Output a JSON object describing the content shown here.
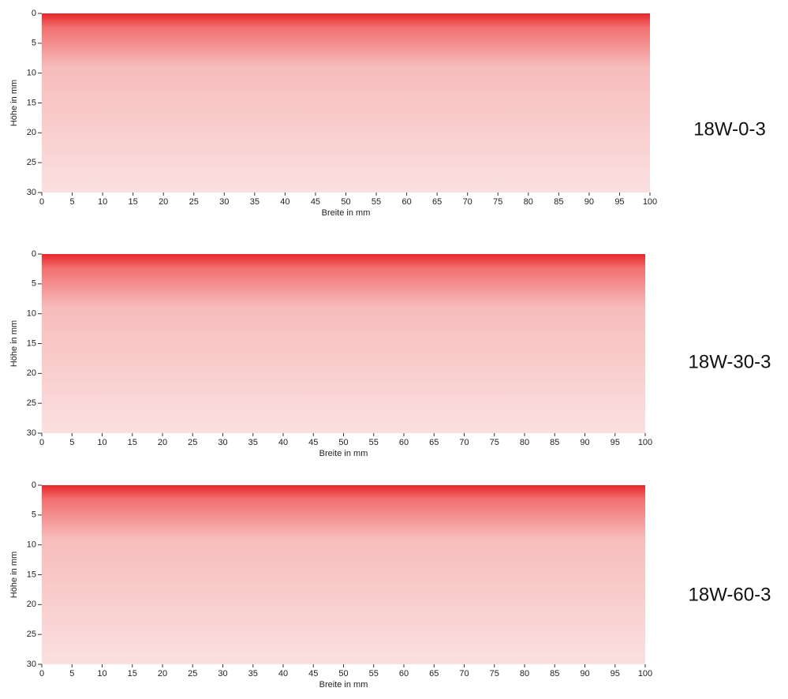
{
  "chart_data": [
    {
      "type": "heatmap",
      "label": "18W-0-3",
      "xlabel": "Breite in mm",
      "ylabel": "Höhe in mm",
      "xlim": [
        0,
        100
      ],
      "ylim": [
        30,
        0
      ],
      "xticks": [
        0,
        5,
        10,
        15,
        20,
        25,
        30,
        35,
        40,
        45,
        50,
        55,
        60,
        65,
        70,
        75,
        80,
        85,
        90,
        95,
        100
      ],
      "yticks": [
        0,
        5,
        10,
        15,
        20,
        25,
        30
      ]
    },
    {
      "type": "heatmap",
      "label": "18W-30-3",
      "xlabel": "Breite in mm",
      "ylabel": "Höhe in mm",
      "xlim": [
        0,
        100
      ],
      "ylim": [
        30,
        0
      ],
      "xticks": [
        0,
        5,
        10,
        15,
        20,
        25,
        30,
        35,
        40,
        45,
        50,
        55,
        60,
        65,
        70,
        75,
        80,
        85,
        90,
        95,
        100
      ],
      "yticks": [
        0,
        5,
        10,
        15,
        20,
        25,
        30
      ]
    },
    {
      "type": "heatmap",
      "label": "18W-60-3",
      "xlabel": "Breite in mm",
      "ylabel": "Höhe in mm",
      "xlim": [
        0,
        100
      ],
      "ylim": [
        30,
        0
      ],
      "xticks": [
        0,
        5,
        10,
        15,
        20,
        25,
        30,
        35,
        40,
        45,
        50,
        55,
        60,
        65,
        70,
        75,
        80,
        85,
        90,
        95,
        100
      ],
      "yticks": [
        0,
        5,
        10,
        15,
        20,
        25,
        30
      ]
    }
  ]
}
